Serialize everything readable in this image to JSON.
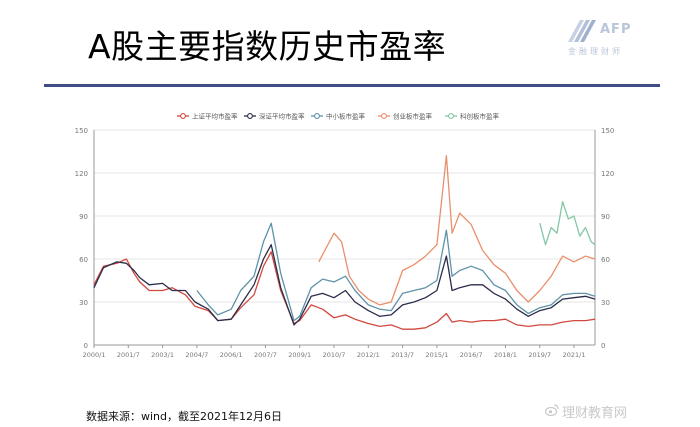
{
  "slide": {
    "title": "A股主要指数历史市盈率",
    "logo_text": "AFP",
    "logo_sub": "金融理财师",
    "source_note": "数据来源：wind，截至2021年12月6日",
    "watermark": "理财教育网"
  },
  "colors": {
    "rule": "#3d4f86",
    "sse": "#d2483f",
    "szse": "#2b2d4a",
    "sme": "#5f93a8",
    "chinext": "#e8906b",
    "star": "#84c7a6",
    "grid": "#e6e6e6"
  },
  "chart_data": {
    "type": "line",
    "x_ticks": [
      "2000/1",
      "2001/7",
      "2003/1",
      "2004/7",
      "2006/1",
      "2007/7",
      "2009/1",
      "2010/7",
      "2012/1",
      "2013/7",
      "2015/1",
      "2016/7",
      "2018/1",
      "2019/7",
      "2021/1"
    ],
    "y_ticks": [
      0,
      30,
      60,
      90,
      120,
      150
    ],
    "ylim": [
      0,
      150
    ],
    "xlim": [
      "2000/1",
      "2021/12"
    ],
    "grid": "horizontal",
    "legend_position": "top-center",
    "dual_axis": true,
    "series": [
      {
        "name": "上证平均市盈率",
        "color_key": "sse",
        "start": "2000/1",
        "points": [
          [
            "2000/1",
            42
          ],
          [
            "2000/6",
            55
          ],
          [
            "2001/1",
            57
          ],
          [
            "2001/6",
            60
          ],
          [
            "2001/10",
            50
          ],
          [
            "2002/1",
            44
          ],
          [
            "2002/6",
            38
          ],
          [
            "2003/1",
            38
          ],
          [
            "2003/6",
            40
          ],
          [
            "2004/1",
            35
          ],
          [
            "2004/6",
            27
          ],
          [
            "2005/1",
            24
          ],
          [
            "2005/6",
            17
          ],
          [
            "2006/1",
            18
          ],
          [
            "2006/6",
            26
          ],
          [
            "2007/1",
            35
          ],
          [
            "2007/6",
            55
          ],
          [
            "2007/10",
            65
          ],
          [
            "2008/3",
            38
          ],
          [
            "2008/10",
            15
          ],
          [
            "2009/1",
            17
          ],
          [
            "2009/7",
            28
          ],
          [
            "2010/1",
            25
          ],
          [
            "2010/7",
            19
          ],
          [
            "2011/1",
            21
          ],
          [
            "2011/6",
            18
          ],
          [
            "2012/1",
            15
          ],
          [
            "2012/7",
            13
          ],
          [
            "2013/1",
            14
          ],
          [
            "2013/7",
            11
          ],
          [
            "2014/1",
            11
          ],
          [
            "2014/7",
            12
          ],
          [
            "2015/1",
            16
          ],
          [
            "2015/6",
            22
          ],
          [
            "2015/9",
            16
          ],
          [
            "2016/1",
            17
          ],
          [
            "2016/7",
            16
          ],
          [
            "2017/1",
            17
          ],
          [
            "2017/7",
            17
          ],
          [
            "2018/1",
            18
          ],
          [
            "2018/7",
            14
          ],
          [
            "2019/1",
            13
          ],
          [
            "2019/7",
            14
          ],
          [
            "2020/1",
            14
          ],
          [
            "2020/7",
            16
          ],
          [
            "2021/1",
            17
          ],
          [
            "2021/7",
            17
          ],
          [
            "2021/12",
            18
          ]
        ]
      },
      {
        "name": "深证平均市盈率",
        "color_key": "szse",
        "start": "2000/1",
        "points": [
          [
            "2000/1",
            40
          ],
          [
            "2000/6",
            54
          ],
          [
            "2001/1",
            58
          ],
          [
            "2001/6",
            57
          ],
          [
            "2001/10",
            52
          ],
          [
            "2002/1",
            47
          ],
          [
            "2002/6",
            42
          ],
          [
            "2003/1",
            43
          ],
          [
            "2003/6",
            38
          ],
          [
            "2004/1",
            38
          ],
          [
            "2004/6",
            30
          ],
          [
            "2005/1",
            25
          ],
          [
            "2005/6",
            17
          ],
          [
            "2006/1",
            18
          ],
          [
            "2006/6",
            28
          ],
          [
            "2007/1",
            42
          ],
          [
            "2007/6",
            60
          ],
          [
            "2007/10",
            70
          ],
          [
            "2008/3",
            40
          ],
          [
            "2008/10",
            14
          ],
          [
            "2009/1",
            18
          ],
          [
            "2009/7",
            34
          ],
          [
            "2010/1",
            36
          ],
          [
            "2010/7",
            33
          ],
          [
            "2011/1",
            38
          ],
          [
            "2011/6",
            30
          ],
          [
            "2012/1",
            24
          ],
          [
            "2012/7",
            20
          ],
          [
            "2013/1",
            21
          ],
          [
            "2013/7",
            28
          ],
          [
            "2014/1",
            30
          ],
          [
            "2014/7",
            33
          ],
          [
            "2015/1",
            38
          ],
          [
            "2015/6",
            62
          ],
          [
            "2015/9",
            38
          ],
          [
            "2016/1",
            40
          ],
          [
            "2016/7",
            42
          ],
          [
            "2017/1",
            42
          ],
          [
            "2017/7",
            36
          ],
          [
            "2018/1",
            32
          ],
          [
            "2018/7",
            25
          ],
          [
            "2019/1",
            20
          ],
          [
            "2019/7",
            24
          ],
          [
            "2020/1",
            26
          ],
          [
            "2020/7",
            32
          ],
          [
            "2021/1",
            33
          ],
          [
            "2021/7",
            34
          ],
          [
            "2021/12",
            32
          ]
        ]
      },
      {
        "name": "中小板市盈率",
        "color_key": "sme",
        "start": "2004/7",
        "points": [
          [
            "2004/7",
            38
          ],
          [
            "2005/1",
            28
          ],
          [
            "2005/6",
            21
          ],
          [
            "2006/1",
            25
          ],
          [
            "2006/6",
            38
          ],
          [
            "2007/1",
            48
          ],
          [
            "2007/6",
            72
          ],
          [
            "2007/10",
            85
          ],
          [
            "2008/3",
            50
          ],
          [
            "2008/10",
            17
          ],
          [
            "2009/1",
            20
          ],
          [
            "2009/7",
            40
          ],
          [
            "2010/1",
            46
          ],
          [
            "2010/7",
            44
          ],
          [
            "2011/1",
            48
          ],
          [
            "2011/6",
            38
          ],
          [
            "2012/1",
            28
          ],
          [
            "2012/7",
            25
          ],
          [
            "2013/1",
            24
          ],
          [
            "2013/7",
            36
          ],
          [
            "2014/1",
            38
          ],
          [
            "2014/7",
            40
          ],
          [
            "2015/1",
            45
          ],
          [
            "2015/6",
            80
          ],
          [
            "2015/9",
            48
          ],
          [
            "2016/1",
            52
          ],
          [
            "2016/7",
            55
          ],
          [
            "2017/1",
            52
          ],
          [
            "2017/7",
            42
          ],
          [
            "2018/1",
            38
          ],
          [
            "2018/7",
            28
          ],
          [
            "2019/1",
            22
          ],
          [
            "2019/7",
            26
          ],
          [
            "2020/1",
            28
          ],
          [
            "2020/7",
            35
          ],
          [
            "2021/1",
            36
          ],
          [
            "2021/7",
            36
          ],
          [
            "2021/12",
            34
          ]
        ]
      },
      {
        "name": "创业板市盈率",
        "color_key": "chinext",
        "start": "2009/11",
        "points": [
          [
            "2009/11",
            58
          ],
          [
            "2010/3",
            68
          ],
          [
            "2010/7",
            78
          ],
          [
            "2010/11",
            72
          ],
          [
            "2011/3",
            48
          ],
          [
            "2011/8",
            38
          ],
          [
            "2012/1",
            32
          ],
          [
            "2012/7",
            28
          ],
          [
            "2013/1",
            30
          ],
          [
            "2013/7",
            52
          ],
          [
            "2014/1",
            56
          ],
          [
            "2014/7",
            62
          ],
          [
            "2015/1",
            70
          ],
          [
            "2015/6",
            132
          ],
          [
            "2015/9",
            78
          ],
          [
            "2016/1",
            92
          ],
          [
            "2016/7",
            84
          ],
          [
            "2017/1",
            66
          ],
          [
            "2017/7",
            56
          ],
          [
            "2018/1",
            50
          ],
          [
            "2018/7",
            38
          ],
          [
            "2019/1",
            30
          ],
          [
            "2019/7",
            38
          ],
          [
            "2020/1",
            48
          ],
          [
            "2020/7",
            62
          ],
          [
            "2021/1",
            58
          ],
          [
            "2021/7",
            62
          ],
          [
            "2021/12",
            60
          ]
        ]
      },
      {
        "name": "科创板市盈率",
        "color_key": "star",
        "start": "2019/7",
        "points": [
          [
            "2019/7",
            85
          ],
          [
            "2019/10",
            70
          ],
          [
            "2020/1",
            82
          ],
          [
            "2020/4",
            78
          ],
          [
            "2020/7",
            100
          ],
          [
            "2020/10",
            88
          ],
          [
            "2021/1",
            90
          ],
          [
            "2021/4",
            76
          ],
          [
            "2021/7",
            82
          ],
          [
            "2021/10",
            72
          ],
          [
            "2021/12",
            70
          ]
        ]
      }
    ]
  }
}
